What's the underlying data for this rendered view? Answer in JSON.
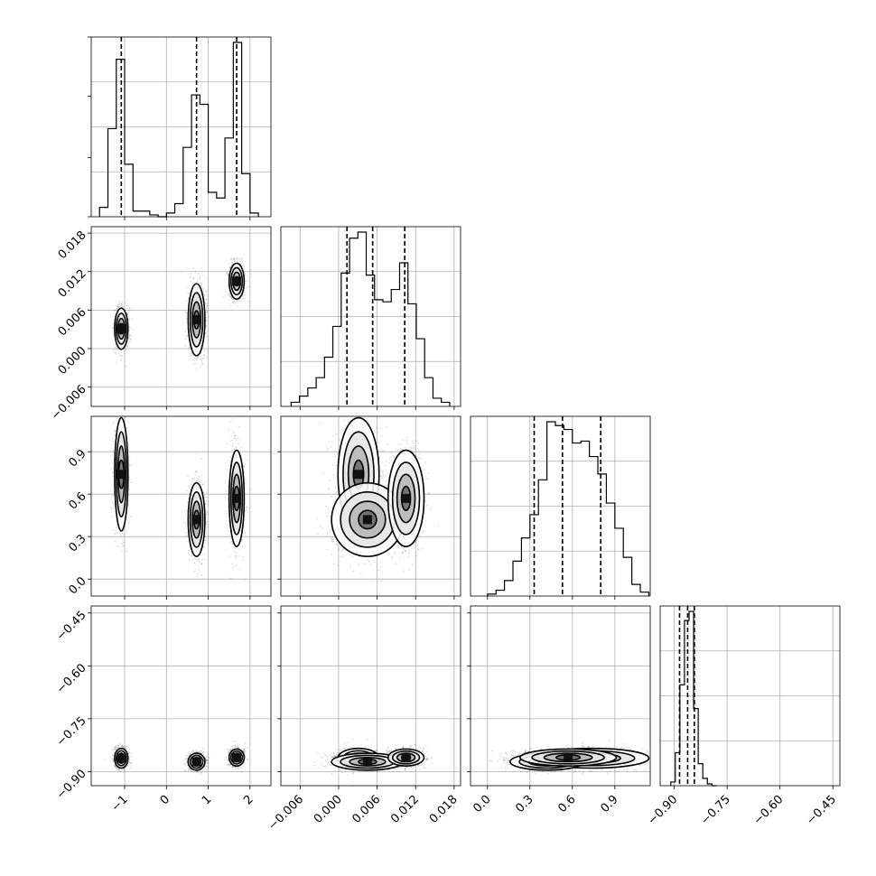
{
  "chart_data": {
    "type": "corner",
    "parameters": 4,
    "grid": true,
    "axis_ranges": [
      [
        -1.8,
        2.5
      ],
      [
        -0.009,
        0.019
      ],
      [
        -0.12,
        1.15
      ],
      [
        -0.94,
        -0.43
      ]
    ],
    "ticks": [
      [
        {
          "v": -1,
          "label": "−1"
        },
        {
          "v": 0,
          "label": "0"
        },
        {
          "v": 1,
          "label": "1"
        },
        {
          "v": 2,
          "label": "2"
        }
      ],
      [
        {
          "v": -0.006,
          "label": "−0.006"
        },
        {
          "v": 0.0,
          "label": "0.000"
        },
        {
          "v": 0.006,
          "label": "0.006"
        },
        {
          "v": 0.012,
          "label": "0.012"
        },
        {
          "v": 0.018,
          "label": "0.018"
        }
      ],
      [
        {
          "v": 0.0,
          "label": "0.0"
        },
        {
          "v": 0.3,
          "label": "0.3"
        },
        {
          "v": 0.6,
          "label": "0.6"
        },
        {
          "v": 0.9,
          "label": "0.9"
        }
      ],
      [
        {
          "v": -0.9,
          "label": "−0.90"
        },
        {
          "v": -0.75,
          "label": "−0.75"
        },
        {
          "v": -0.6,
          "label": "−0.60"
        },
        {
          "v": -0.45,
          "label": "−0.45"
        }
      ]
    ],
    "quantiles": [
      [
        -1.08,
        0.72,
        1.68
      ],
      [
        0.0013,
        0.0053,
        0.0103
      ],
      [
        0.33,
        0.53,
        0.8
      ],
      [
        -0.885,
        -0.862,
        -0.843
      ]
    ],
    "histograms": [
      {
        "edges": [
          -1.6,
          -1.4,
          -1.2,
          -1.0,
          -0.8,
          -0.6,
          -0.4,
          -0.2,
          0.0,
          0.2,
          0.4,
          0.6,
          0.8,
          1.0,
          1.2,
          1.4,
          1.6,
          1.8,
          2.0,
          2.2
        ],
        "counts": [
          0.05,
          0.47,
          0.84,
          0.28,
          0.03,
          0.03,
          0.01,
          0.0,
          0.02,
          0.07,
          0.37,
          0.65,
          0.6,
          0.13,
          0.1,
          0.42,
          0.93,
          0.23,
          0.02
        ]
      },
      {
        "edges": [
          -0.0074,
          -0.0061,
          -0.0048,
          -0.0035,
          -0.0022,
          -0.0009,
          0.0004,
          0.0017,
          0.003,
          0.0043,
          0.0056,
          0.0069,
          0.0082,
          0.0095,
          0.0108,
          0.0121,
          0.0134,
          0.0147,
          0.016,
          0.0173
        ],
        "counts": [
          0.02,
          0.05,
          0.09,
          0.14,
          0.24,
          0.39,
          0.65,
          0.82,
          0.85,
          0.64,
          0.52,
          0.51,
          0.57,
          0.7,
          0.5,
          0.33,
          0.14,
          0.04,
          0.02
        ]
      },
      {
        "edges": [
          0.0,
          0.06,
          0.12,
          0.18,
          0.24,
          0.3,
          0.36,
          0.42,
          0.48,
          0.54,
          0.6,
          0.66,
          0.72,
          0.78,
          0.84,
          0.9,
          0.96,
          1.02,
          1.08,
          1.14
        ],
        "counts": [
          0.01,
          0.03,
          0.08,
          0.18,
          0.3,
          0.42,
          0.6,
          0.9,
          0.88,
          0.86,
          0.79,
          0.8,
          0.72,
          0.63,
          0.48,
          0.35,
          0.2,
          0.06,
          0.02
        ]
      },
      {
        "edges": [
          -0.91,
          -0.897,
          -0.884,
          -0.871,
          -0.858,
          -0.845,
          -0.832,
          -0.819,
          -0.806,
          -0.793,
          -0.78
        ],
        "counts": [
          0.02,
          0.18,
          0.55,
          0.9,
          0.95,
          0.42,
          0.12,
          0.04,
          0.01,
          0.0
        ]
      }
    ],
    "clusters": [
      {
        "p0": -1.08,
        "p1": 0.0031,
        "p2": 0.74,
        "p3": -0.862,
        "s0": 0.08,
        "s1": 0.0016,
        "s2": 0.2,
        "s3": 0.014,
        "w": 0.33
      },
      {
        "p0": 0.72,
        "p1": 0.0045,
        "p2": 0.42,
        "p3": -0.872,
        "s0": 0.1,
        "s1": 0.0028,
        "s2": 0.13,
        "s3": 0.012,
        "w": 0.34
      },
      {
        "p0": 1.68,
        "p1": 0.0105,
        "p2": 0.57,
        "p3": -0.86,
        "s0": 0.09,
        "s1": 0.0014,
        "s2": 0.17,
        "s3": 0.012,
        "w": 0.33
      }
    ]
  }
}
